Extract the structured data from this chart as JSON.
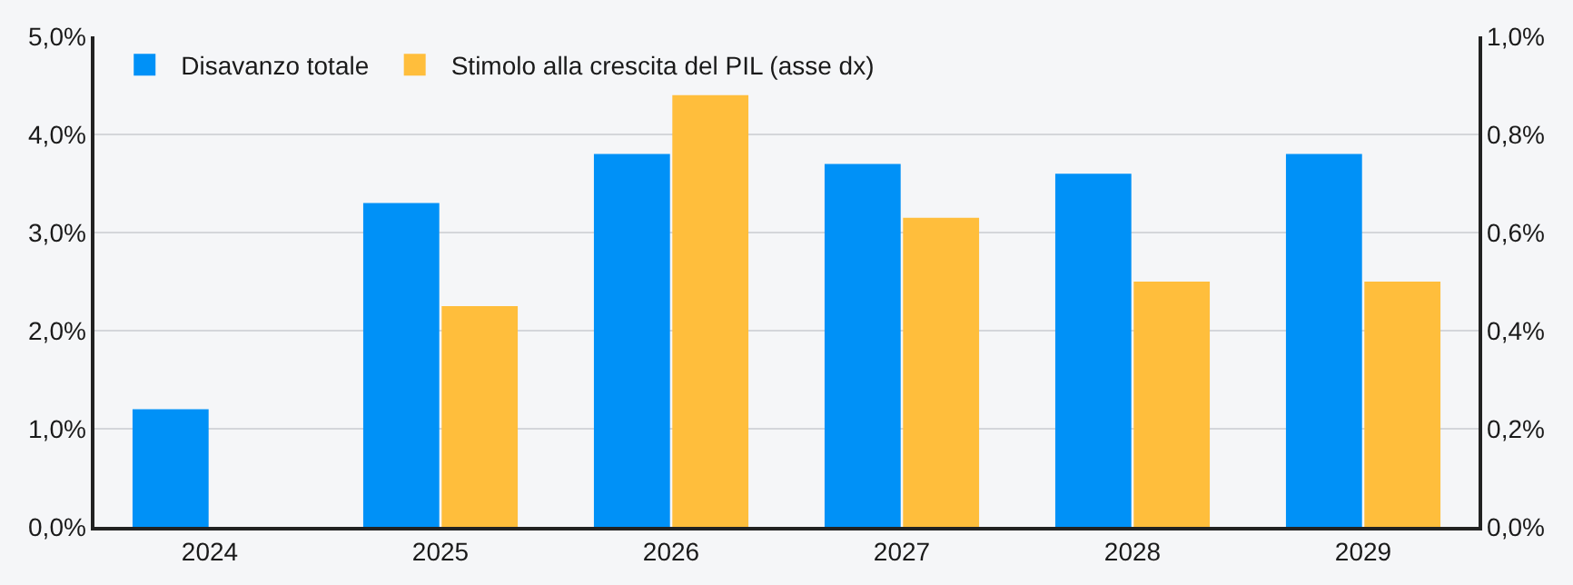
{
  "chart_data": {
    "type": "bar",
    "categories": [
      "2024",
      "2025",
      "2026",
      "2027",
      "2028",
      "2029"
    ],
    "series": [
      {
        "name": "Disavanzo totale",
        "color": "#0091f7",
        "values": [
          1.2,
          3.3,
          3.8,
          3.7,
          3.6,
          3.8
        ]
      },
      {
        "name": "Stimolo alla crescita del PIL (asse dx)",
        "color": "#ffbe3c",
        "axis": "y2",
        "values": [
          null,
          0.45,
          0.88,
          0.63,
          0.5,
          0.5
        ]
      }
    ],
    "ylim": [
      0,
      5
    ],
    "yticks": [
      {
        "value": 0,
        "label": "0,0%"
      },
      {
        "value": 1,
        "label": "1,0%"
      },
      {
        "value": 2,
        "label": "2,0%"
      },
      {
        "value": 3,
        "label": "3,0%"
      },
      {
        "value": 4,
        "label": "4,0%"
      },
      {
        "value": 5,
        "label": "5,0%"
      }
    ],
    "y2lim": [
      0,
      1
    ],
    "y2ticks": [
      {
        "value": 0,
        "label": "0,0%"
      },
      {
        "value": 0.2,
        "label": "0,2%"
      },
      {
        "value": 0.4,
        "label": "0,4%"
      },
      {
        "value": 0.6,
        "label": "0,6%"
      },
      {
        "value": 0.8,
        "label": "0,8%"
      },
      {
        "value": 1,
        "label": "1,0%"
      }
    ],
    "grid": "y",
    "legend": "top left"
  }
}
